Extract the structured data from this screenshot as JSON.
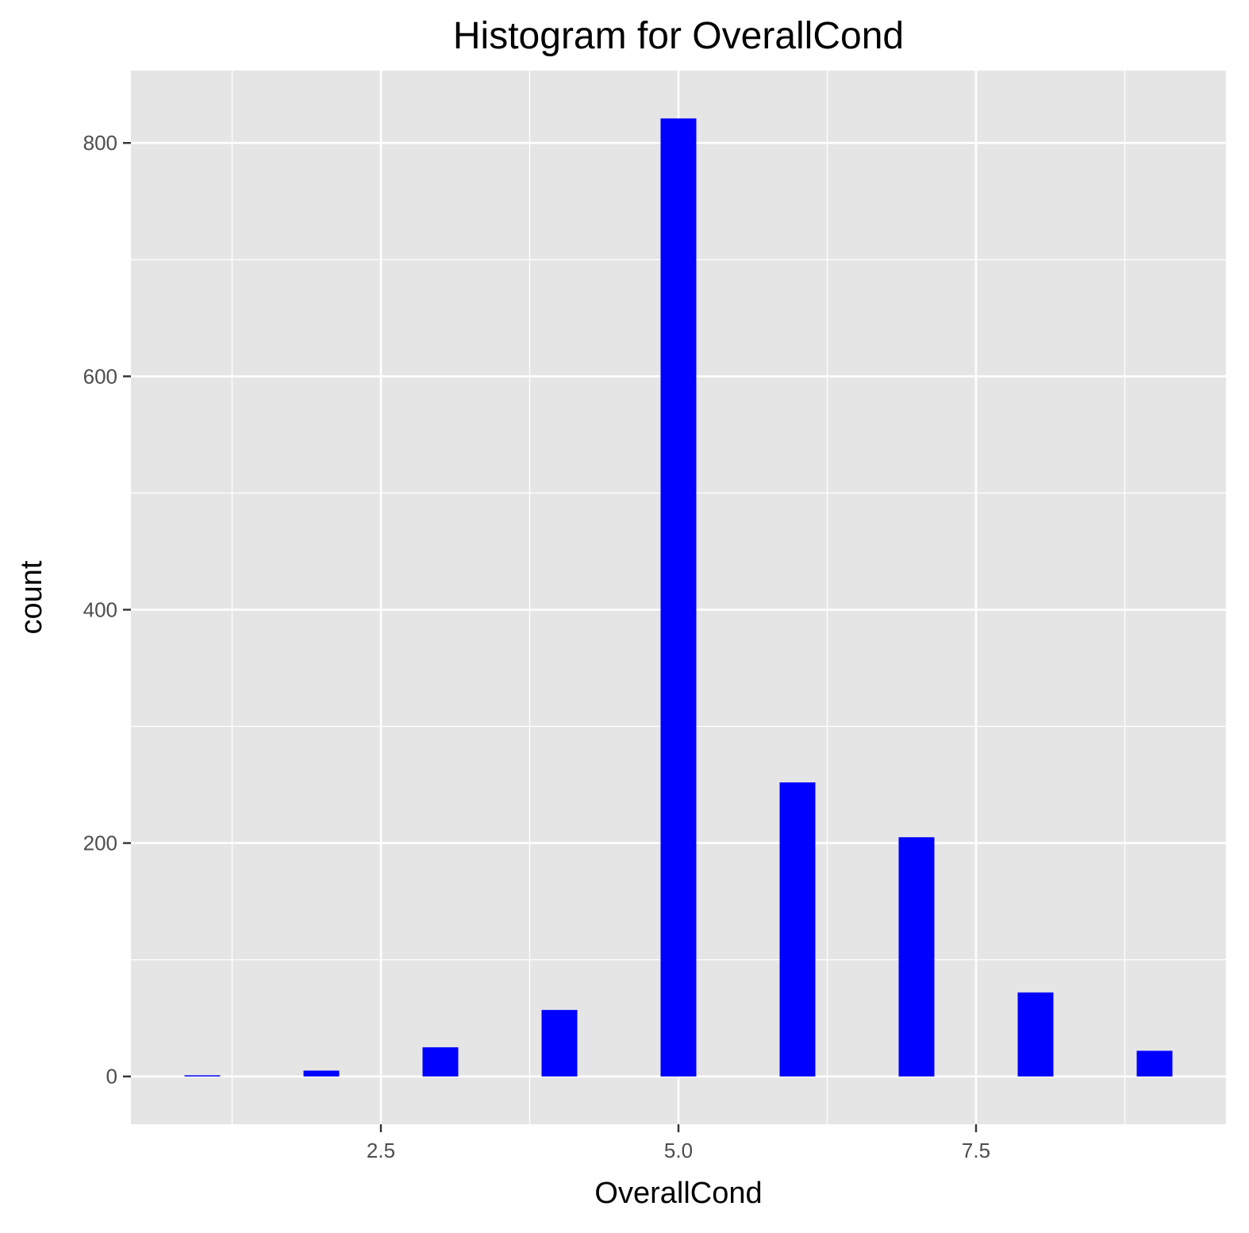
{
  "chart_data": {
    "type": "bar",
    "title": "Histogram for OverallCond",
    "xlabel": "OverallCond",
    "ylabel": "count",
    "x": [
      1,
      2,
      3,
      4,
      5,
      6,
      7,
      8,
      9
    ],
    "values": [
      1,
      5,
      25,
      57,
      821,
      252,
      205,
      72,
      22
    ],
    "xlim": [
      0.4,
      9.6
    ],
    "ylim": [
      -41,
      862
    ],
    "xticks": [
      2.5,
      5.0,
      7.5
    ],
    "xtick_labels": [
      "2.5",
      "5.0",
      "7.5"
    ],
    "yticks": [
      0,
      200,
      400,
      600,
      800
    ],
    "ytick_labels": [
      "0",
      "200",
      "400",
      "600",
      "800"
    ],
    "bar_color": "#0000ff",
    "panel_color": "#e5e5e5",
    "grid": true,
    "legend": "none"
  }
}
